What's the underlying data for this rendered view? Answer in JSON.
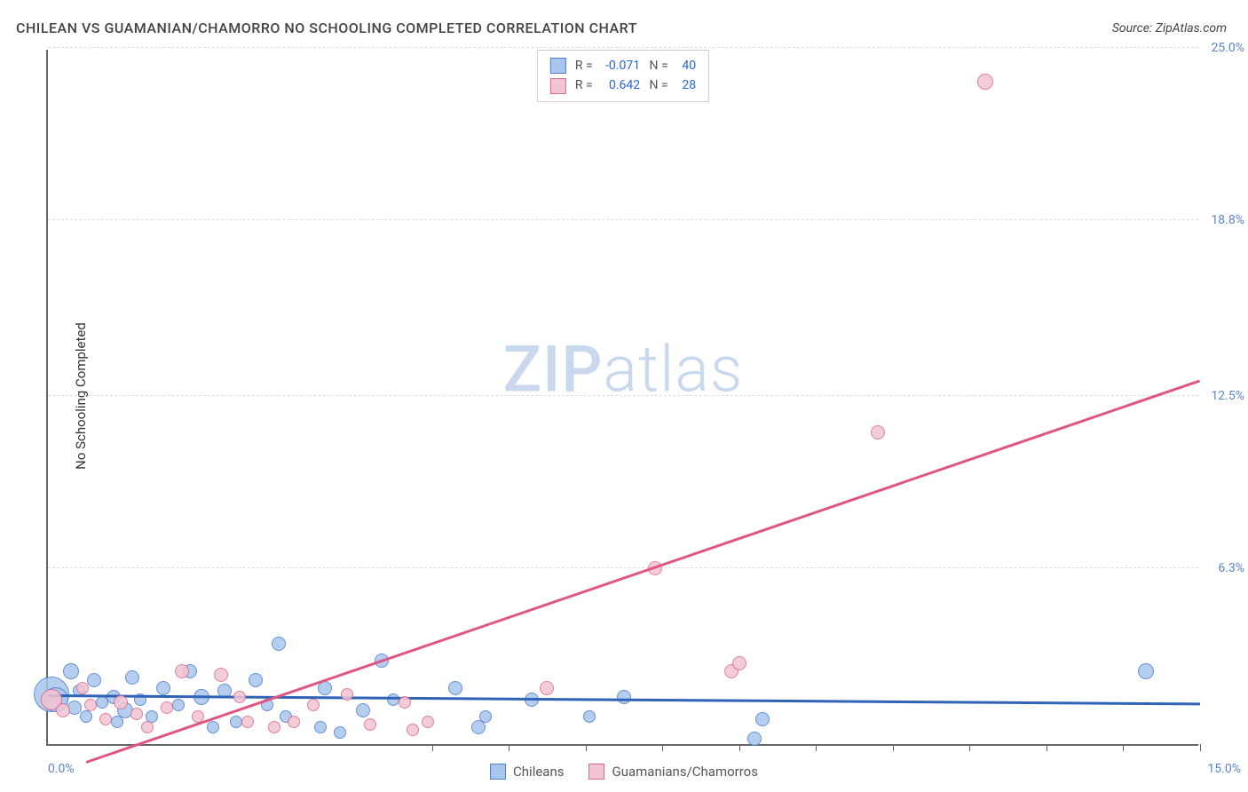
{
  "title": "CHILEAN VS GUAMANIAN/CHAMORRO NO SCHOOLING COMPLETED CORRELATION CHART",
  "source": "Source: ZipAtlas.com",
  "ylabel": "No Schooling Completed",
  "watermark_bold": "ZIP",
  "watermark_light": "atlas",
  "chart": {
    "type": "scatter",
    "xlim": [
      0,
      15
    ],
    "ylim": [
      0,
      25
    ],
    "x_axis_left_label": "0.0%",
    "x_axis_right_label": "15.0%",
    "y_ticks": [
      {
        "value": 6.3,
        "label": "6.3%"
      },
      {
        "value": 12.5,
        "label": "12.5%"
      },
      {
        "value": 18.8,
        "label": "18.8%"
      },
      {
        "value": 25.0,
        "label": "25.0%"
      }
    ],
    "x_tick_positions": [
      5,
      6,
      7,
      8,
      9,
      10,
      11,
      12,
      13,
      14,
      15
    ],
    "background_color": "#ffffff",
    "grid_color": "#dddddd",
    "axis_color": "#666666",
    "tick_label_color": "#5b86c5"
  },
  "series": [
    {
      "id": "chileans",
      "label": "Chileans",
      "fill_color": "#a9c6ee",
      "stroke_color": "#4a7fc9",
      "trend_color": "#2f63b8",
      "trend_width": 2.5,
      "R": "-0.071",
      "N": "40",
      "trendline": {
        "x1": 0,
        "y1": 1.7,
        "x2": 15,
        "y2": 1.4
      },
      "points": [
        {
          "x": 0.05,
          "y": 1.8,
          "r": 20
        },
        {
          "x": 0.1,
          "y": 1.6,
          "r": 14
        },
        {
          "x": 0.3,
          "y": 2.6,
          "r": 9
        },
        {
          "x": 0.35,
          "y": 1.3,
          "r": 8
        },
        {
          "x": 0.4,
          "y": 1.9,
          "r": 7
        },
        {
          "x": 0.5,
          "y": 1.0,
          "r": 7
        },
        {
          "x": 0.6,
          "y": 2.3,
          "r": 8
        },
        {
          "x": 0.7,
          "y": 1.5,
          "r": 7
        },
        {
          "x": 0.85,
          "y": 1.7,
          "r": 8
        },
        {
          "x": 0.9,
          "y": 0.8,
          "r": 7
        },
        {
          "x": 1.0,
          "y": 1.2,
          "r": 9
        },
        {
          "x": 1.1,
          "y": 2.4,
          "r": 8
        },
        {
          "x": 1.2,
          "y": 1.6,
          "r": 7
        },
        {
          "x": 1.35,
          "y": 1.0,
          "r": 7
        },
        {
          "x": 1.5,
          "y": 2.0,
          "r": 8
        },
        {
          "x": 1.7,
          "y": 1.4,
          "r": 7
        },
        {
          "x": 1.85,
          "y": 2.6,
          "r": 8
        },
        {
          "x": 2.0,
          "y": 1.7,
          "r": 9
        },
        {
          "x": 2.15,
          "y": 0.6,
          "r": 7
        },
        {
          "x": 2.3,
          "y": 1.9,
          "r": 8
        },
        {
          "x": 2.45,
          "y": 0.8,
          "r": 7
        },
        {
          "x": 2.7,
          "y": 2.3,
          "r": 8
        },
        {
          "x": 2.85,
          "y": 1.4,
          "r": 7
        },
        {
          "x": 3.0,
          "y": 3.6,
          "r": 8
        },
        {
          "x": 3.1,
          "y": 1.0,
          "r": 7
        },
        {
          "x": 3.55,
          "y": 0.6,
          "r": 7
        },
        {
          "x": 3.6,
          "y": 2.0,
          "r": 8
        },
        {
          "x": 3.8,
          "y": 0.4,
          "r": 7
        },
        {
          "x": 4.1,
          "y": 1.2,
          "r": 8
        },
        {
          "x": 4.35,
          "y": 3.0,
          "r": 8
        },
        {
          "x": 4.5,
          "y": 1.6,
          "r": 7
        },
        {
          "x": 5.3,
          "y": 2.0,
          "r": 8
        },
        {
          "x": 5.6,
          "y": 0.6,
          "r": 8
        },
        {
          "x": 5.7,
          "y": 1.0,
          "r": 7
        },
        {
          "x": 6.3,
          "y": 1.6,
          "r": 8
        },
        {
          "x": 7.05,
          "y": 1.0,
          "r": 7
        },
        {
          "x": 7.5,
          "y": 1.7,
          "r": 8
        },
        {
          "x": 9.2,
          "y": 0.2,
          "r": 8
        },
        {
          "x": 9.3,
          "y": 0.9,
          "r": 8
        },
        {
          "x": 14.3,
          "y": 2.6,
          "r": 9
        }
      ]
    },
    {
      "id": "guamanians",
      "label": "Guamanians/Chamorros",
      "fill_color": "#f3c4d2",
      "stroke_color": "#d96a8f",
      "trend_color": "#df5684",
      "trend_width": 2.5,
      "R": "0.642",
      "N": "28",
      "trendline": {
        "x1": 0.5,
        "y1": -0.7,
        "x2": 15,
        "y2": 13.0
      },
      "points": [
        {
          "x": 0.05,
          "y": 1.6,
          "r": 12
        },
        {
          "x": 0.2,
          "y": 1.2,
          "r": 8
        },
        {
          "x": 0.45,
          "y": 2.0,
          "r": 7
        },
        {
          "x": 0.55,
          "y": 1.4,
          "r": 7
        },
        {
          "x": 0.75,
          "y": 0.9,
          "r": 7
        },
        {
          "x": 0.95,
          "y": 1.5,
          "r": 8
        },
        {
          "x": 1.15,
          "y": 1.1,
          "r": 7
        },
        {
          "x": 1.3,
          "y": 0.6,
          "r": 7
        },
        {
          "x": 1.55,
          "y": 1.3,
          "r": 7
        },
        {
          "x": 1.75,
          "y": 2.6,
          "r": 8
        },
        {
          "x": 1.95,
          "y": 1.0,
          "r": 7
        },
        {
          "x": 2.25,
          "y": 2.5,
          "r": 8
        },
        {
          "x": 2.5,
          "y": 1.7,
          "r": 7
        },
        {
          "x": 2.6,
          "y": 0.8,
          "r": 7
        },
        {
          "x": 2.95,
          "y": 0.6,
          "r": 7
        },
        {
          "x": 3.2,
          "y": 0.8,
          "r": 7
        },
        {
          "x": 3.45,
          "y": 1.4,
          "r": 7
        },
        {
          "x": 3.9,
          "y": 1.8,
          "r": 7
        },
        {
          "x": 4.2,
          "y": 0.7,
          "r": 7
        },
        {
          "x": 4.65,
          "y": 1.5,
          "r": 7
        },
        {
          "x": 4.75,
          "y": 0.5,
          "r": 7
        },
        {
          "x": 4.95,
          "y": 0.8,
          "r": 7
        },
        {
          "x": 6.5,
          "y": 2.0,
          "r": 8
        },
        {
          "x": 7.9,
          "y": 6.3,
          "r": 8
        },
        {
          "x": 8.9,
          "y": 2.6,
          "r": 8
        },
        {
          "x": 9.0,
          "y": 2.9,
          "r": 8
        },
        {
          "x": 10.8,
          "y": 11.2,
          "r": 8
        },
        {
          "x": 12.2,
          "y": 23.8,
          "r": 9
        }
      ]
    }
  ],
  "legend_top": {
    "r_prefix": "R =",
    "n_prefix": "N ="
  },
  "legend_bottom": {
    "items": [
      "Chileans",
      "Guamanians/Chamorros"
    ]
  }
}
